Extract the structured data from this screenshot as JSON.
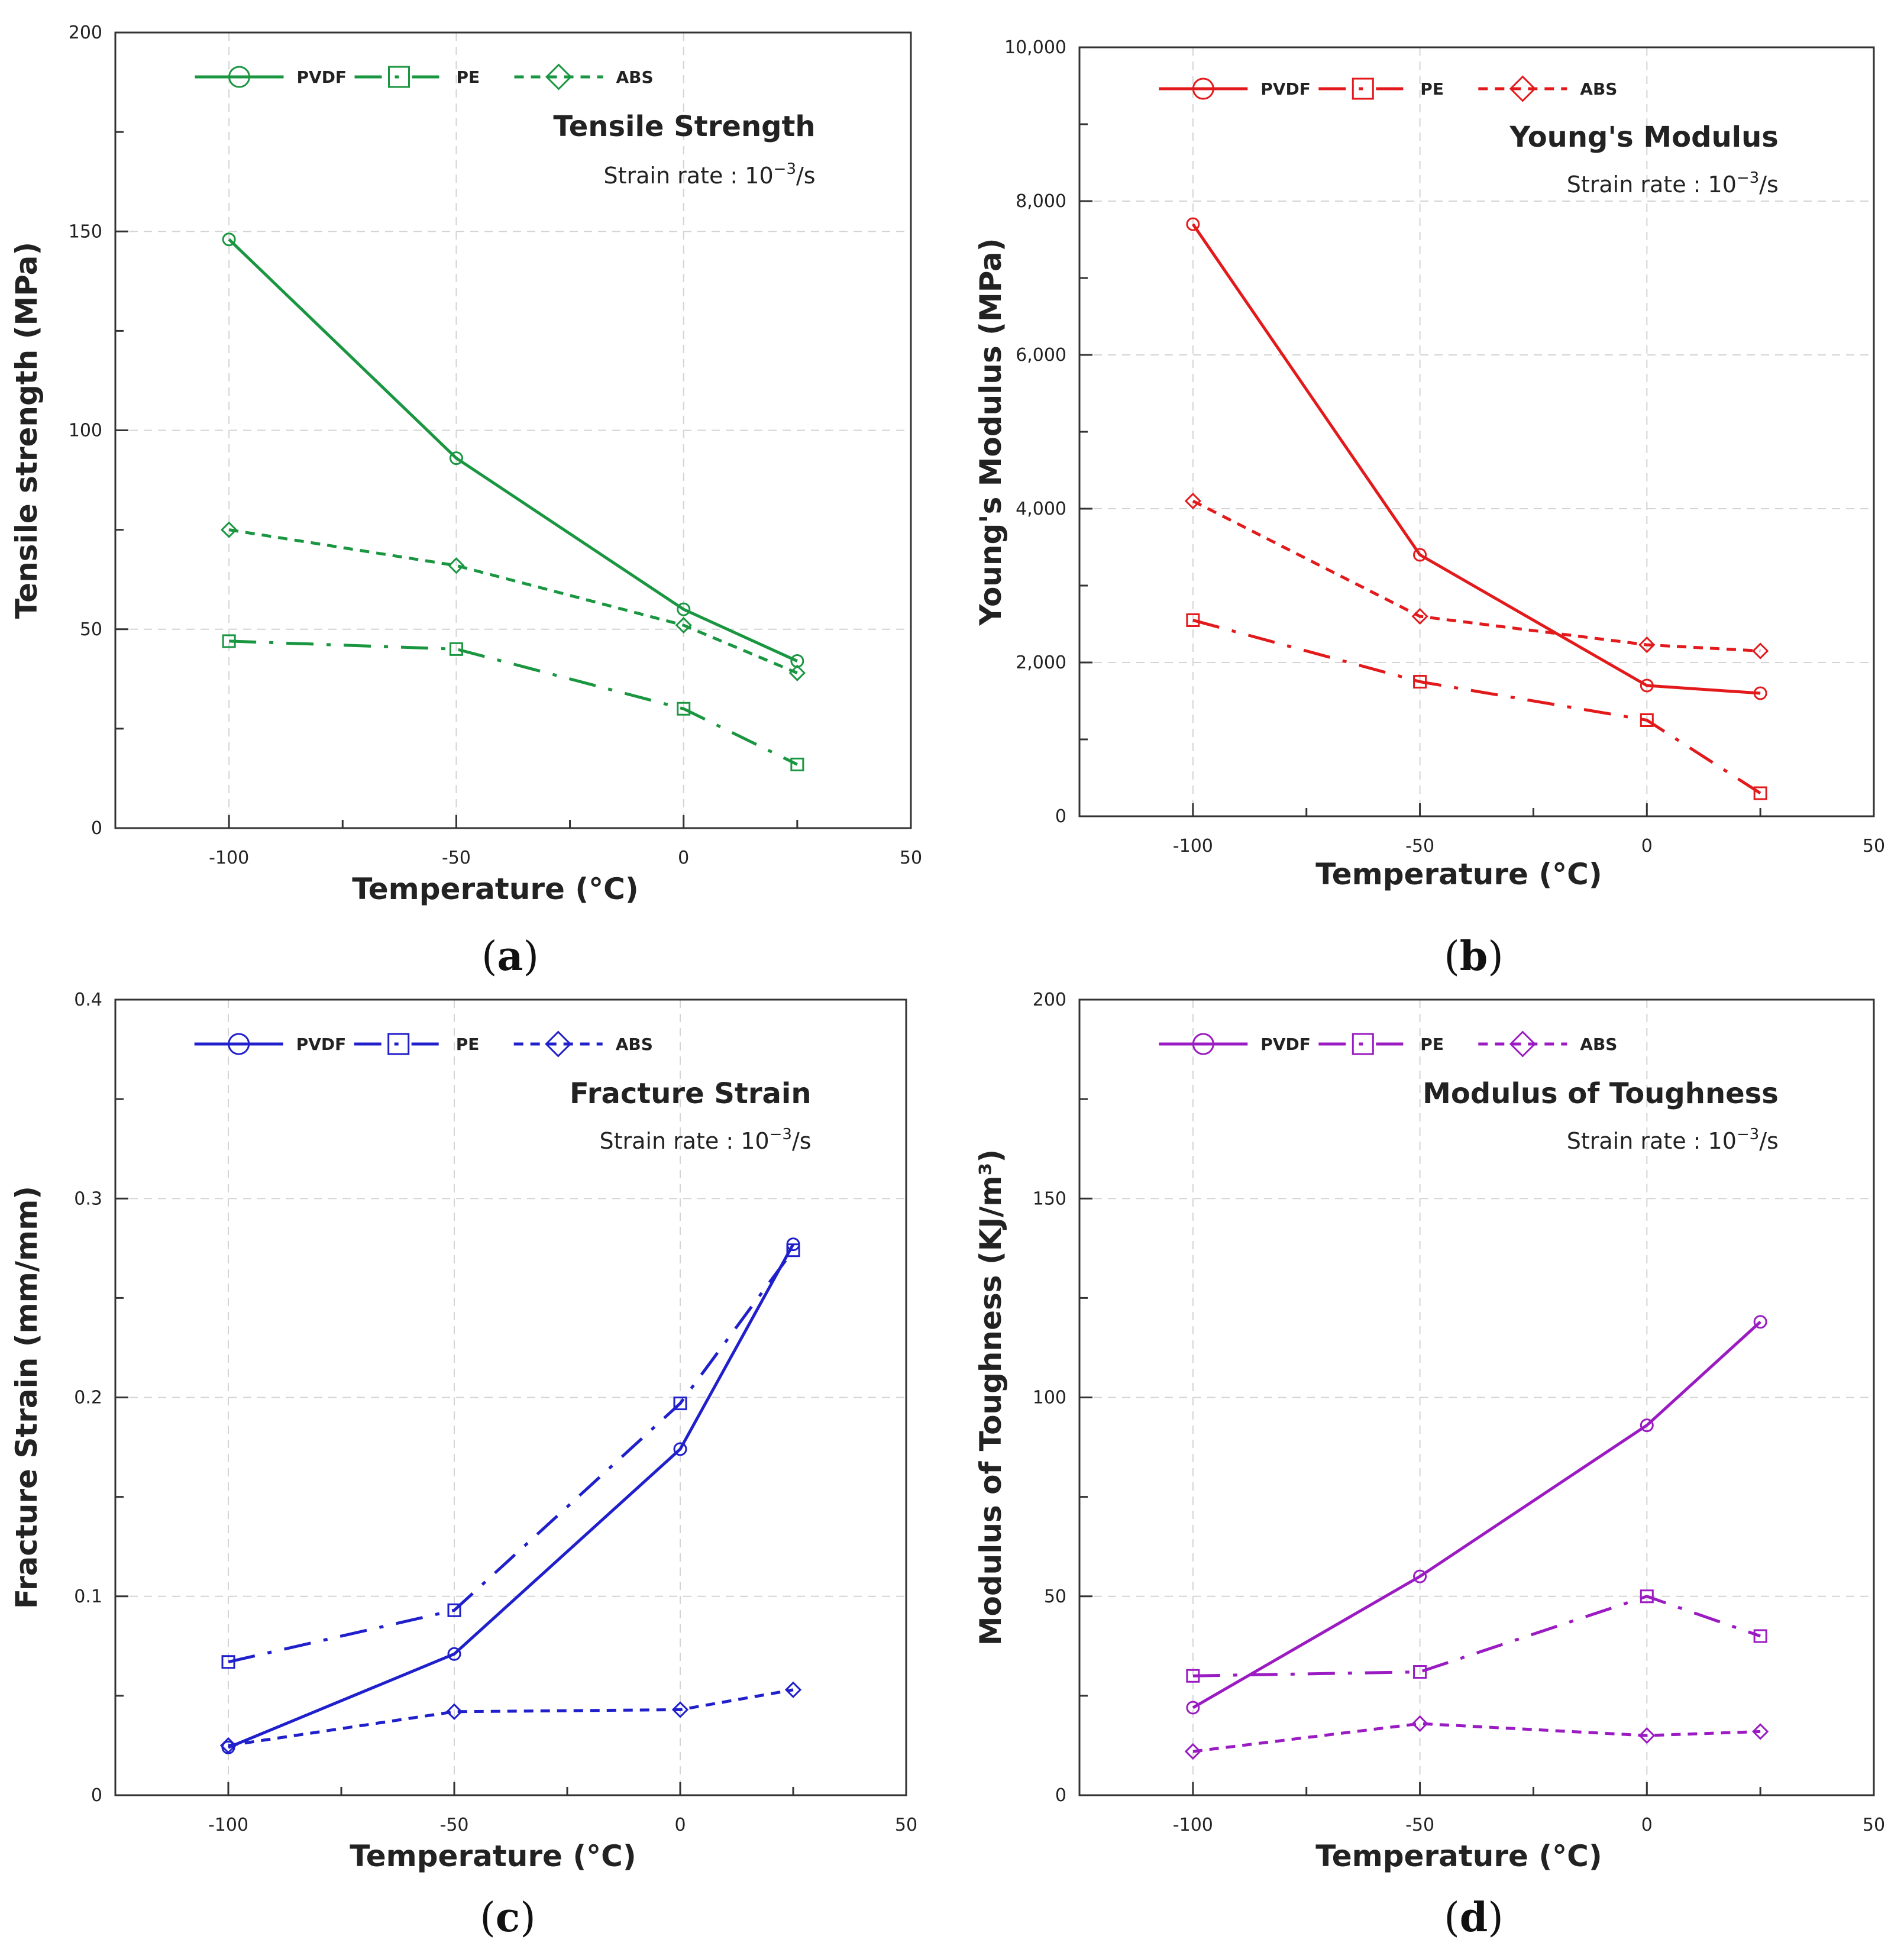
{
  "figure": {
    "panels": [
      {
        "label_open": "(",
        "label_letter": "a",
        "label_close": ")"
      },
      {
        "label_open": "(",
        "label_letter": "b",
        "label_close": ")"
      },
      {
        "label_open": "(",
        "label_letter": "c",
        "label_close": ")"
      },
      {
        "label_open": "(",
        "label_letter": "d",
        "label_close": ")"
      }
    ]
  },
  "chart_data": [
    {
      "type": "line",
      "title": "Tensile Strength",
      "subtitle_prefix": "Strain rate : 10",
      "subtitle_exp": "−3",
      "subtitle_suffix": "/s",
      "xlabel": "Temperature (°C)",
      "ylabel": "Tensile strength (MPa)",
      "xlim": [
        -125,
        50
      ],
      "ylim": [
        0,
        200
      ],
      "xticks": [
        -100,
        -50,
        0,
        50
      ],
      "xtick_labels": [
        "-100",
        "-50",
        "0",
        "50"
      ],
      "yticks": [
        0,
        50,
        100,
        150,
        200
      ],
      "ytick_labels": [
        "0",
        "50",
        "100",
        "150",
        "200"
      ],
      "color": "#1a9641",
      "x": [
        -100,
        -50,
        0,
        25
      ],
      "series": [
        {
          "name": "PVDF",
          "marker": "circle",
          "dash": "solid",
          "values": [
            148,
            93,
            55,
            42
          ]
        },
        {
          "name": "PE",
          "marker": "square",
          "dash": "dashdot",
          "values": [
            47,
            45,
            30,
            16
          ]
        },
        {
          "name": "ABS",
          "marker": "diamond",
          "dash": "dashed",
          "values": [
            75,
            66,
            51,
            39
          ]
        }
      ]
    },
    {
      "type": "line",
      "title": "Young's Modulus",
      "subtitle_prefix": "Strain rate : 10",
      "subtitle_exp": "−3",
      "subtitle_suffix": "/s",
      "xlabel": "Temperature (°C)",
      "ylabel": "Young's Modulus (MPa)",
      "xlim": [
        -125,
        50
      ],
      "ylim": [
        0,
        10000
      ],
      "xticks": [
        -100,
        -50,
        0,
        50
      ],
      "xtick_labels": [
        "-100",
        "-50",
        "0",
        "50"
      ],
      "yticks": [
        0,
        2000,
        4000,
        6000,
        8000,
        10000
      ],
      "ytick_labels": [
        "0",
        "2,000",
        "4,000",
        "6,000",
        "8,000",
        "10,000"
      ],
      "color": "#e31a1c",
      "x": [
        -100,
        -50,
        0,
        25
      ],
      "series": [
        {
          "name": "PVDF",
          "marker": "circle",
          "dash": "solid",
          "values": [
            7700,
            3400,
            1700,
            1600
          ]
        },
        {
          "name": "PE",
          "marker": "square",
          "dash": "dashdot",
          "values": [
            2550,
            1750,
            1250,
            300
          ]
        },
        {
          "name": "ABS",
          "marker": "diamond",
          "dash": "dashed",
          "values": [
            4100,
            2600,
            2230,
            2150
          ]
        }
      ]
    },
    {
      "type": "line",
      "title": "Fracture Strain",
      "subtitle_prefix": "Strain rate : 10",
      "subtitle_exp": "−3",
      "subtitle_suffix": "/s",
      "xlabel": "Temperature (°C)",
      "ylabel": "Fracture Strain (mm/mm)",
      "xlim": [
        -125,
        50
      ],
      "ylim": [
        0,
        0.4
      ],
      "xticks": [
        -100,
        -50,
        0,
        50
      ],
      "xtick_labels": [
        "-100",
        "-50",
        "0",
        "50"
      ],
      "yticks": [
        0,
        0.1,
        0.2,
        0.3,
        0.4
      ],
      "ytick_labels": [
        "0",
        "0.1",
        "0.2",
        "0.3",
        "0.4"
      ],
      "color": "#1f1fcc",
      "x": [
        -100,
        -50,
        0,
        25
      ],
      "series": [
        {
          "name": "PVDF",
          "marker": "circle",
          "dash": "solid",
          "values": [
            0.024,
            0.071,
            0.174,
            0.277
          ]
        },
        {
          "name": "PE",
          "marker": "square",
          "dash": "dashdot",
          "values": [
            0.067,
            0.093,
            0.197,
            0.274
          ]
        },
        {
          "name": "ABS",
          "marker": "diamond",
          "dash": "dashed",
          "values": [
            0.025,
            0.042,
            0.043,
            0.053
          ]
        }
      ]
    },
    {
      "type": "line",
      "title": "Modulus of Toughness",
      "subtitle_prefix": "Strain rate : 10",
      "subtitle_exp": "−3",
      "subtitle_suffix": "/s",
      "xlabel": "Temperature (°C)",
      "ylabel": "Modulus of Toughness (KJ/m³)",
      "xlim": [
        -125,
        50
      ],
      "ylim": [
        0,
        200
      ],
      "xticks": [
        -100,
        -50,
        0,
        50
      ],
      "xtick_labels": [
        "-100",
        "-50",
        "0",
        "50"
      ],
      "yticks": [
        0,
        50,
        100,
        150,
        200
      ],
      "ytick_labels": [
        "0",
        "50",
        "100",
        "150",
        "200"
      ],
      "color": "#9b1bc2",
      "x": [
        -100,
        -50,
        0,
        25
      ],
      "series": [
        {
          "name": "PVDF",
          "marker": "circle",
          "dash": "solid",
          "values": [
            22,
            55,
            93,
            119
          ]
        },
        {
          "name": "PE",
          "marker": "square",
          "dash": "dashdot",
          "values": [
            30,
            31,
            50,
            40
          ]
        },
        {
          "name": "ABS",
          "marker": "diamond",
          "dash": "dashed",
          "values": [
            11,
            18,
            15,
            16
          ]
        }
      ]
    }
  ]
}
